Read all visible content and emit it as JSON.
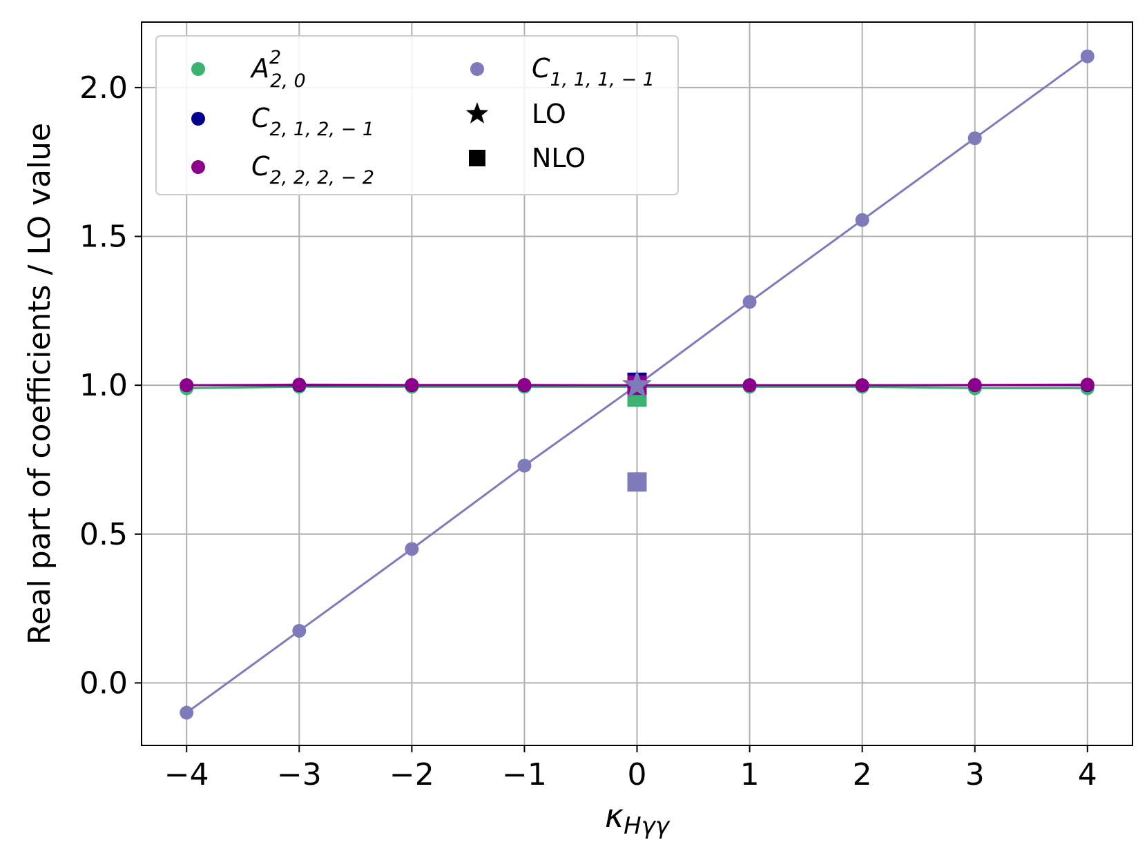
{
  "chart_data": {
    "type": "line",
    "xlabel": "κ_Hγγ",
    "ylabel": "Real part of coefficients / LO value",
    "xlim": [
      -4.4,
      4.4
    ],
    "ylim": [
      -0.21,
      2.22
    ],
    "x_ticks": [
      -4,
      -3,
      -2,
      -1,
      0,
      1,
      2,
      3,
      4
    ],
    "x_tick_labels": [
      "−4",
      "−3",
      "−2",
      "−1",
      "0",
      "1",
      "2",
      "3",
      "4"
    ],
    "y_ticks": [
      0.0,
      0.5,
      1.0,
      1.5,
      2.0
    ],
    "y_tick_labels": [
      "0.0",
      "0.5",
      "1.0",
      "1.5",
      "2.0"
    ],
    "grid": true,
    "legend_position": "top-left",
    "x": [
      -4,
      -3,
      -2,
      -1,
      0,
      1,
      2,
      3,
      4
    ],
    "series": [
      {
        "name": "A^2_{2,0}",
        "legend_main": "A",
        "legend_sup": "2",
        "legend_sub": "2, 0",
        "color": "#3cb371",
        "values": [
          0.99,
          0.995,
          0.995,
          0.995,
          0.995,
          0.995,
          0.995,
          0.99,
          0.99
        ],
        "lo": 1.0,
        "nlo": 0.96
      },
      {
        "name": "C_{2,1,2,-1}",
        "legend_main": "C",
        "legend_sub": "2, 1, 2, − 1",
        "color": "#00008b",
        "values": [
          1.0,
          1.0,
          1.0,
          1.0,
          1.0,
          1.0,
          1.0,
          1.0,
          1.0
        ],
        "lo": 1.0,
        "nlo": 1.01
      },
      {
        "name": "C_{2,2,2,-2}",
        "legend_main": "C",
        "legend_sub": "2, 2, 2, − 2",
        "color": "#8b008b",
        "values": [
          1.0,
          1.002,
          1.001,
          1.001,
          1.0,
          1.0,
          1.0,
          1.001,
          1.002
        ],
        "lo": 1.0,
        "nlo": 1.0
      },
      {
        "name": "C_{1,1,1,-1}",
        "legend_main": "C",
        "legend_sub": "1, 1, 1, − 1",
        "color": "#7f7bbb",
        "values": [
          -0.1,
          0.175,
          0.45,
          0.73,
          1.0,
          1.28,
          1.555,
          1.83,
          2.105
        ],
        "lo": 1.0,
        "nlo": 0.675
      }
    ],
    "legend_markers": [
      {
        "name": "LO",
        "marker": "star",
        "color": "#000000"
      },
      {
        "name": "NLO",
        "marker": "square",
        "color": "#000000"
      }
    ]
  }
}
